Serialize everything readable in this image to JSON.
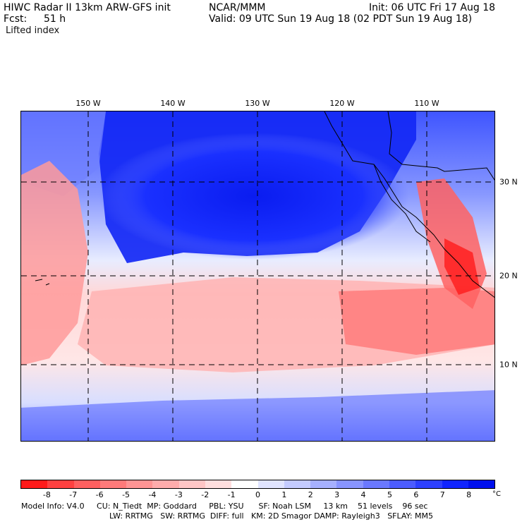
{
  "header": {
    "model": "HIWC Radar II 13km ARW-GFS init",
    "org": "NCAR/MMM",
    "init": "Init: 06 UTC Fri 17 Aug 18",
    "fcst_label": "Fcst:",
    "fcst_value": "51 h",
    "valid": "Valid: 09 UTC Sun 19 Aug 18 (02 PDT Sun 19 Aug 18)",
    "variable": "Lifted index"
  },
  "map": {
    "lon_labels": [
      "150 W",
      "140 W",
      "130 W",
      "120 W",
      "110 W"
    ],
    "lat_labels": [
      "30 N",
      "20 N",
      "10 N"
    ]
  },
  "colorbar": {
    "ticks": [
      "-8",
      "-7",
      "-6",
      "-5",
      "-4",
      "-3",
      "-2",
      "-1",
      "0",
      "1",
      "2",
      "3",
      "4",
      "5",
      "6",
      "7",
      "8"
    ],
    "unit": "°C",
    "colors": [
      "#ff1a1a",
      "#ff4040",
      "#ff6060",
      "#ff7a7a",
      "#ff9494",
      "#ffacac",
      "#ffc6c6",
      "#ffdede",
      "#ffffff",
      "#e0e4ff",
      "#c4cbff",
      "#a6b0ff",
      "#8894ff",
      "#6a78ff",
      "#4c5cff",
      "#2e40ff",
      "#1024ff",
      "#0010ee"
    ]
  },
  "footer": {
    "line1": "Model Info: V4.0     CU: N_Tiedt  MP: Goddard     PBL: YSU      SF: Noah LSM     13 km    51 levels    96 sec",
    "line2": "LW: RRTMG   SW: RRTMG  DIFF: full   KM: 2D Smagor DAMP: Rayleigh3   SFLAY: MM5"
  }
}
